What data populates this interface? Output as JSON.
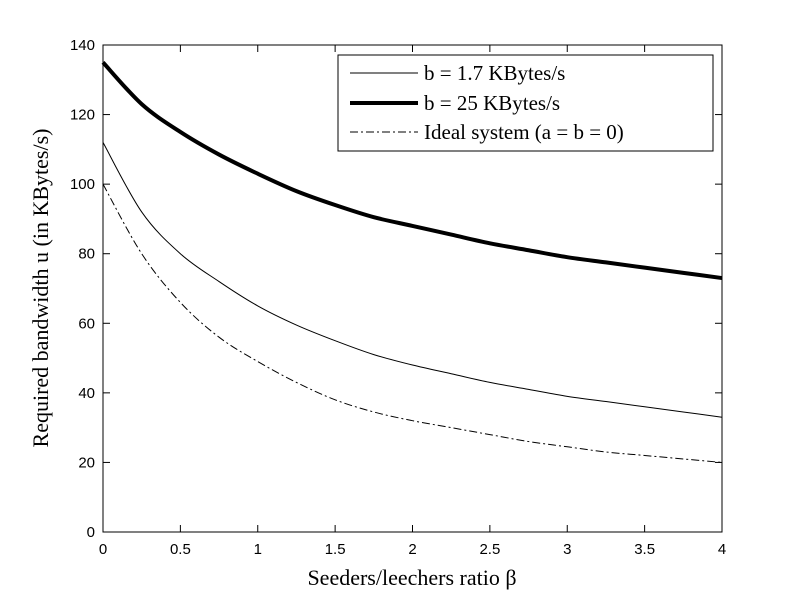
{
  "chart_data": {
    "type": "line",
    "title": "",
    "xlabel": "Seeders/leechers ratio β",
    "ylabel": "Required bandwidth u (in KBytes/s)",
    "xlim": [
      0,
      4
    ],
    "ylim": [
      0,
      140
    ],
    "x_ticks": [
      0,
      0.5,
      1,
      1.5,
      2,
      2.5,
      3,
      3.5,
      4
    ],
    "x_tick_labels": [
      "0",
      "0.5",
      "1",
      "1.5",
      "2",
      "2.5",
      "3",
      "3.5",
      "4"
    ],
    "y_ticks": [
      0,
      20,
      40,
      60,
      80,
      100,
      120,
      140
    ],
    "y_tick_labels": [
      "0",
      "20",
      "40",
      "60",
      "80",
      "100",
      "120",
      "140"
    ],
    "grid": false,
    "legend_position": "top-right",
    "x": [
      0,
      0.25,
      0.5,
      0.75,
      1,
      1.25,
      1.5,
      1.75,
      2,
      2.25,
      2.5,
      2.75,
      3,
      3.25,
      3.5,
      3.75,
      4
    ],
    "series": [
      {
        "name": "b = 1.7 KBytes/s",
        "style": "thin-solid",
        "color": "#000000",
        "values": [
          112,
          92,
          80,
          72,
          65,
          59.5,
          55,
          51,
          48,
          45.5,
          43,
          41,
          39,
          37.5,
          36,
          34.5,
          33
        ]
      },
      {
        "name": "b = 25 KBytes/s",
        "style": "thick-solid",
        "color": "#000000",
        "values": [
          135,
          123,
          115,
          108.5,
          103,
          98,
          94,
          90.5,
          88,
          85.5,
          83,
          81,
          79,
          77.5,
          76,
          74.5,
          73
        ]
      },
      {
        "name": "Ideal system (a = b = 0)",
        "style": "dash-dot",
        "color": "#000000",
        "values": [
          100,
          80,
          66,
          56,
          49,
          43,
          38,
          34.5,
          32,
          30,
          28,
          26,
          24.5,
          23,
          22,
          21,
          20
        ]
      }
    ]
  }
}
